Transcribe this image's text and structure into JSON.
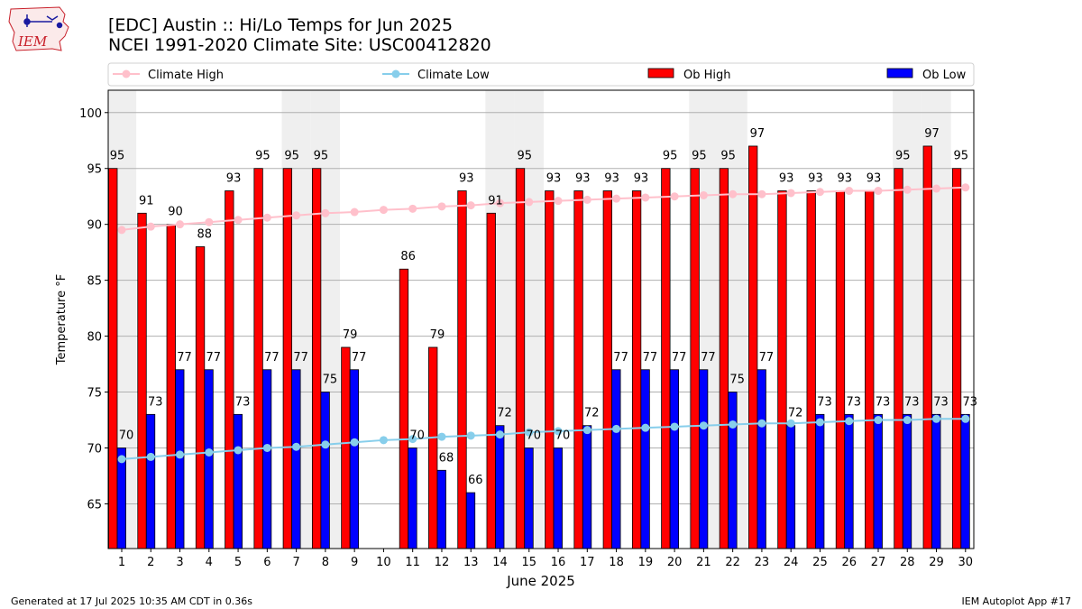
{
  "logo": {
    "text": "IEM"
  },
  "header": {
    "title_line1": "[EDC] Austin :: Hi/Lo Temps for Jun 2025",
    "title_line2": "NCEI 1991-2020 Climate Site: USC00412820"
  },
  "footer": {
    "generated": "Generated at 17 Jul 2025 10:35 AM CDT in 0.36s",
    "app": "IEM Autoplot App #17"
  },
  "colors": {
    "ob_high": "#ff0000",
    "ob_low": "#0000ff",
    "climate_high": "#ffc0cb",
    "climate_low": "#87ceeb",
    "weekend_shade": "#efefef",
    "grid": "#b0b0b0"
  },
  "chart_data": {
    "type": "bar",
    "xlabel": "June 2025",
    "ylabel": "Temperature °F",
    "ylim": [
      61,
      102
    ],
    "yticks": [
      65,
      70,
      75,
      80,
      85,
      90,
      95,
      100
    ],
    "grid": "horizontal",
    "legend_position": "top",
    "categories": [
      "1",
      "2",
      "3",
      "4",
      "5",
      "6",
      "7",
      "8",
      "9",
      "10",
      "11",
      "12",
      "13",
      "14",
      "15",
      "16",
      "17",
      "18",
      "19",
      "20",
      "21",
      "22",
      "23",
      "24",
      "25",
      "26",
      "27",
      "28",
      "29",
      "30"
    ],
    "shaded_days": [
      1,
      7,
      8,
      14,
      15,
      21,
      22,
      28,
      29
    ],
    "series": [
      {
        "name": "Ob High",
        "kind": "bar",
        "values": [
          95,
          91,
          90,
          88,
          93,
          95,
          95,
          95,
          79,
          null,
          86,
          79,
          93,
          91,
          95,
          93,
          93,
          93,
          93,
          95,
          95,
          95,
          97,
          93,
          93,
          93,
          93,
          95,
          97,
          95
        ]
      },
      {
        "name": "Ob Low",
        "kind": "bar",
        "values": [
          70,
          73,
          77,
          77,
          73,
          77,
          77,
          75,
          77,
          null,
          70,
          68,
          66,
          72,
          70,
          70,
          72,
          77,
          77,
          77,
          77,
          75,
          77,
          72,
          73,
          73,
          73,
          73,
          73,
          73
        ]
      },
      {
        "name": "Climate High",
        "kind": "line",
        "values": [
          89.5,
          89.8,
          90.0,
          90.2,
          90.4,
          90.6,
          90.8,
          91.0,
          91.1,
          91.3,
          91.4,
          91.6,
          91.7,
          91.9,
          92.0,
          92.1,
          92.2,
          92.3,
          92.4,
          92.5,
          92.6,
          92.7,
          92.7,
          92.8,
          92.9,
          93.0,
          93.0,
          93.1,
          93.2,
          93.3
        ]
      },
      {
        "name": "Climate Low",
        "kind": "line",
        "values": [
          69.0,
          69.2,
          69.4,
          69.6,
          69.8,
          70.0,
          70.1,
          70.3,
          70.5,
          70.7,
          70.8,
          71.0,
          71.1,
          71.2,
          71.4,
          71.5,
          71.6,
          71.7,
          71.8,
          71.9,
          72.0,
          72.1,
          72.2,
          72.2,
          72.3,
          72.4,
          72.5,
          72.5,
          72.6,
          72.6
        ]
      }
    ]
  }
}
